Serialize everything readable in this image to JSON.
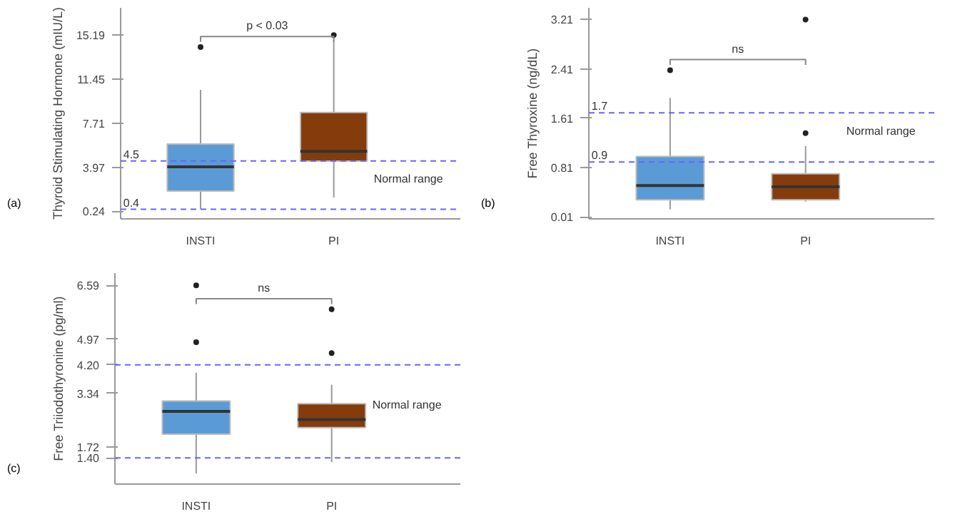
{
  "chart_data": [
    {
      "type": "box",
      "ylabel": "Thyroid Stimulating Hormone (mIU/L)",
      "categories": [
        "INSTI",
        "PI"
      ],
      "colors": [
        "#5b9bd5",
        "#843c0c"
      ],
      "boxes": [
        {
          "low": 0.42,
          "q1": 1.95,
          "median": 4.01,
          "q3": 5.94,
          "high": 10.54,
          "outliers": [
            14.17
          ]
        },
        {
          "low": 1.4,
          "q1": 4.49,
          "median": 5.32,
          "q3": 8.62,
          "high": 14.8,
          "outliers": [
            15.19
          ]
        }
      ],
      "ylim": [
        -0.41,
        17.5
      ],
      "yticks": [
        0.24,
        3.97,
        7.71,
        11.45,
        15.19
      ],
      "ref_lines": [
        {
          "axis": "y",
          "value": 4.5,
          "label": "4.5",
          "color": "#6666ff",
          "line_style": "dashed"
        },
        {
          "axis": "y",
          "value": 0.4,
          "label": "0.4",
          "color": "#6666ff",
          "line_style": "dashed"
        }
      ],
      "annotations": [
        "(a)",
        "p < 0.03",
        "Normal range"
      ],
      "grid": false
    },
    {
      "type": "box",
      "ylabel": "Free Thyroxine (ng/dL)",
      "categories": [
        "INSTI",
        "PI"
      ],
      "colors": [
        "#5b9bd5",
        "#843c0c"
      ],
      "boxes": [
        {
          "low": 0.135,
          "q1": 0.29,
          "median": 0.52,
          "q3": 0.99,
          "high": 1.94,
          "outliers": [
            2.39
          ]
        },
        {
          "low": 0.26,
          "q1": 0.29,
          "median": 0.5,
          "q3": 0.71,
          "high": 1.16,
          "outliers": [
            1.37,
            3.21
          ]
        }
      ],
      "ylim": [
        -0.02,
        3.4
      ],
      "yticks": [
        0.01,
        0.81,
        1.61,
        2.41,
        3.21
      ],
      "ref_lines": [
        {
          "axis": "y",
          "value": 1.7,
          "label": "1.7",
          "color": "#6666ff",
          "line_style": "dashed"
        },
        {
          "axis": "y",
          "value": 0.9,
          "label": "0.9",
          "color": "#6666ff",
          "line_style": "dashed"
        }
      ],
      "annotations": [
        "(b)",
        "ns",
        "Normal range"
      ],
      "grid": false
    },
    {
      "type": "box",
      "ylabel": "Free Triiodothyronine (pg/ml)",
      "categories": [
        "INSTI",
        "PI"
      ],
      "colors": [
        "#5b9bd5",
        "#843c0c"
      ],
      "boxes": [
        {
          "low": 0.93,
          "q1": 2.11,
          "median": 2.8,
          "q3": 3.11,
          "high": 3.96,
          "outliers": [
            4.88,
            6.59
          ]
        },
        {
          "low": 1.27,
          "q1": 2.31,
          "median": 2.55,
          "q3": 3.03,
          "high": 3.6,
          "outliers": [
            4.55,
            5.87
          ]
        }
      ],
      "ylim": [
        0.61,
        6.96
      ],
      "yticks": [
        {
          "value": 1.4,
          "label": "1.40"
        },
        1.72,
        3.34,
        {
          "value": 4.2,
          "label": "4.20"
        },
        4.97,
        6.59
      ],
      "ref_lines": [
        {
          "axis": "y",
          "value": 4.2,
          "label": null,
          "color": "#6666ff",
          "line_style": "dashed"
        },
        {
          "axis": "y",
          "value": 1.4,
          "label": null,
          "color": "#6666ff",
          "line_style": "dashed"
        }
      ],
      "annotations": [
        "(c)",
        "ns",
        "Normal range"
      ],
      "grid": false
    }
  ]
}
